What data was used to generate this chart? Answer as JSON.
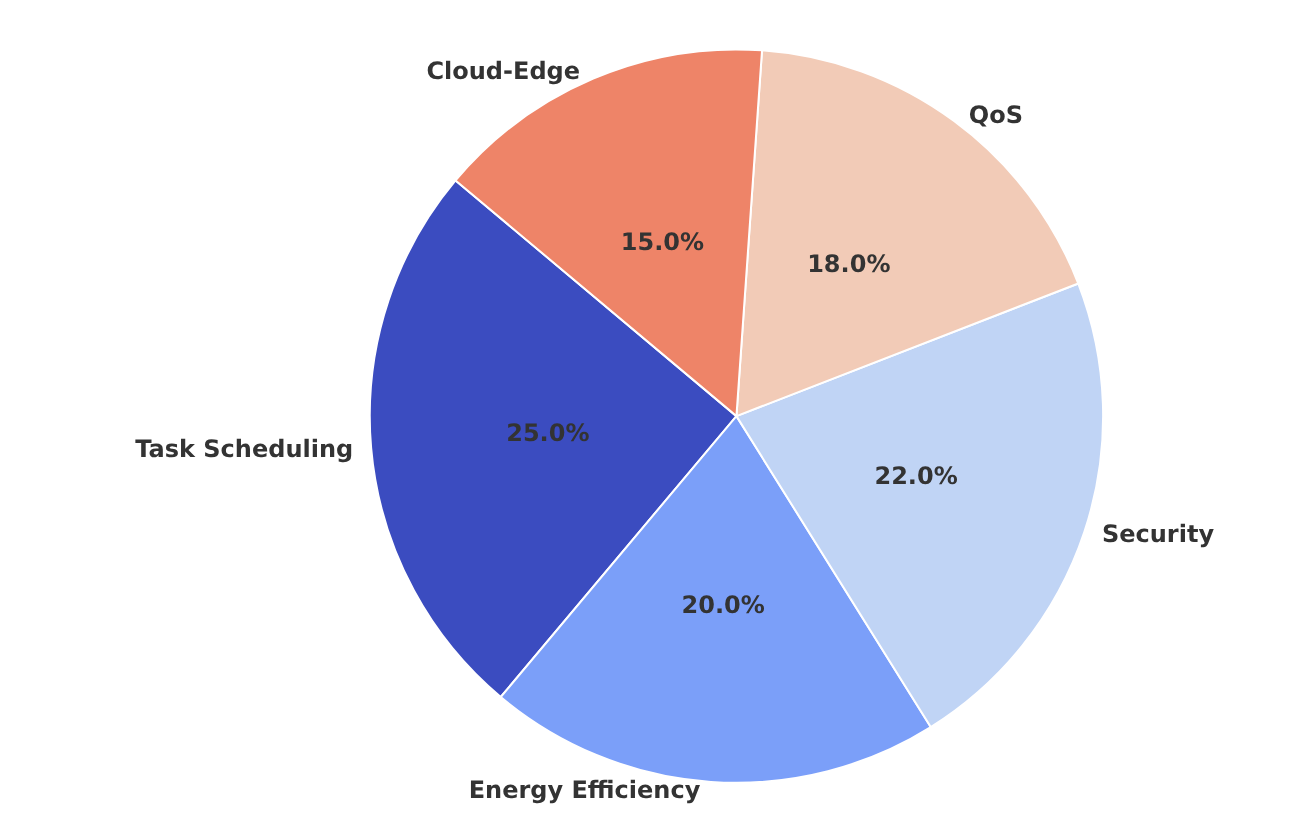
{
  "chart_data": {
    "type": "pie",
    "categories": [
      "Task Scheduling",
      "Energy Efficiency",
      "Security",
      "QoS",
      "Cloud-Edge"
    ],
    "values": [
      25,
      20,
      22,
      18,
      15
    ],
    "colors": [
      "#3b4cc0",
      "#7b9ff9",
      "#c0d4f5",
      "#f2cbb7",
      "#ee8468"
    ],
    "value_labels": [
      "25.0%",
      "20.0%",
      "22.0%",
      "18.0%",
      "15.0%"
    ],
    "legend": false
  }
}
